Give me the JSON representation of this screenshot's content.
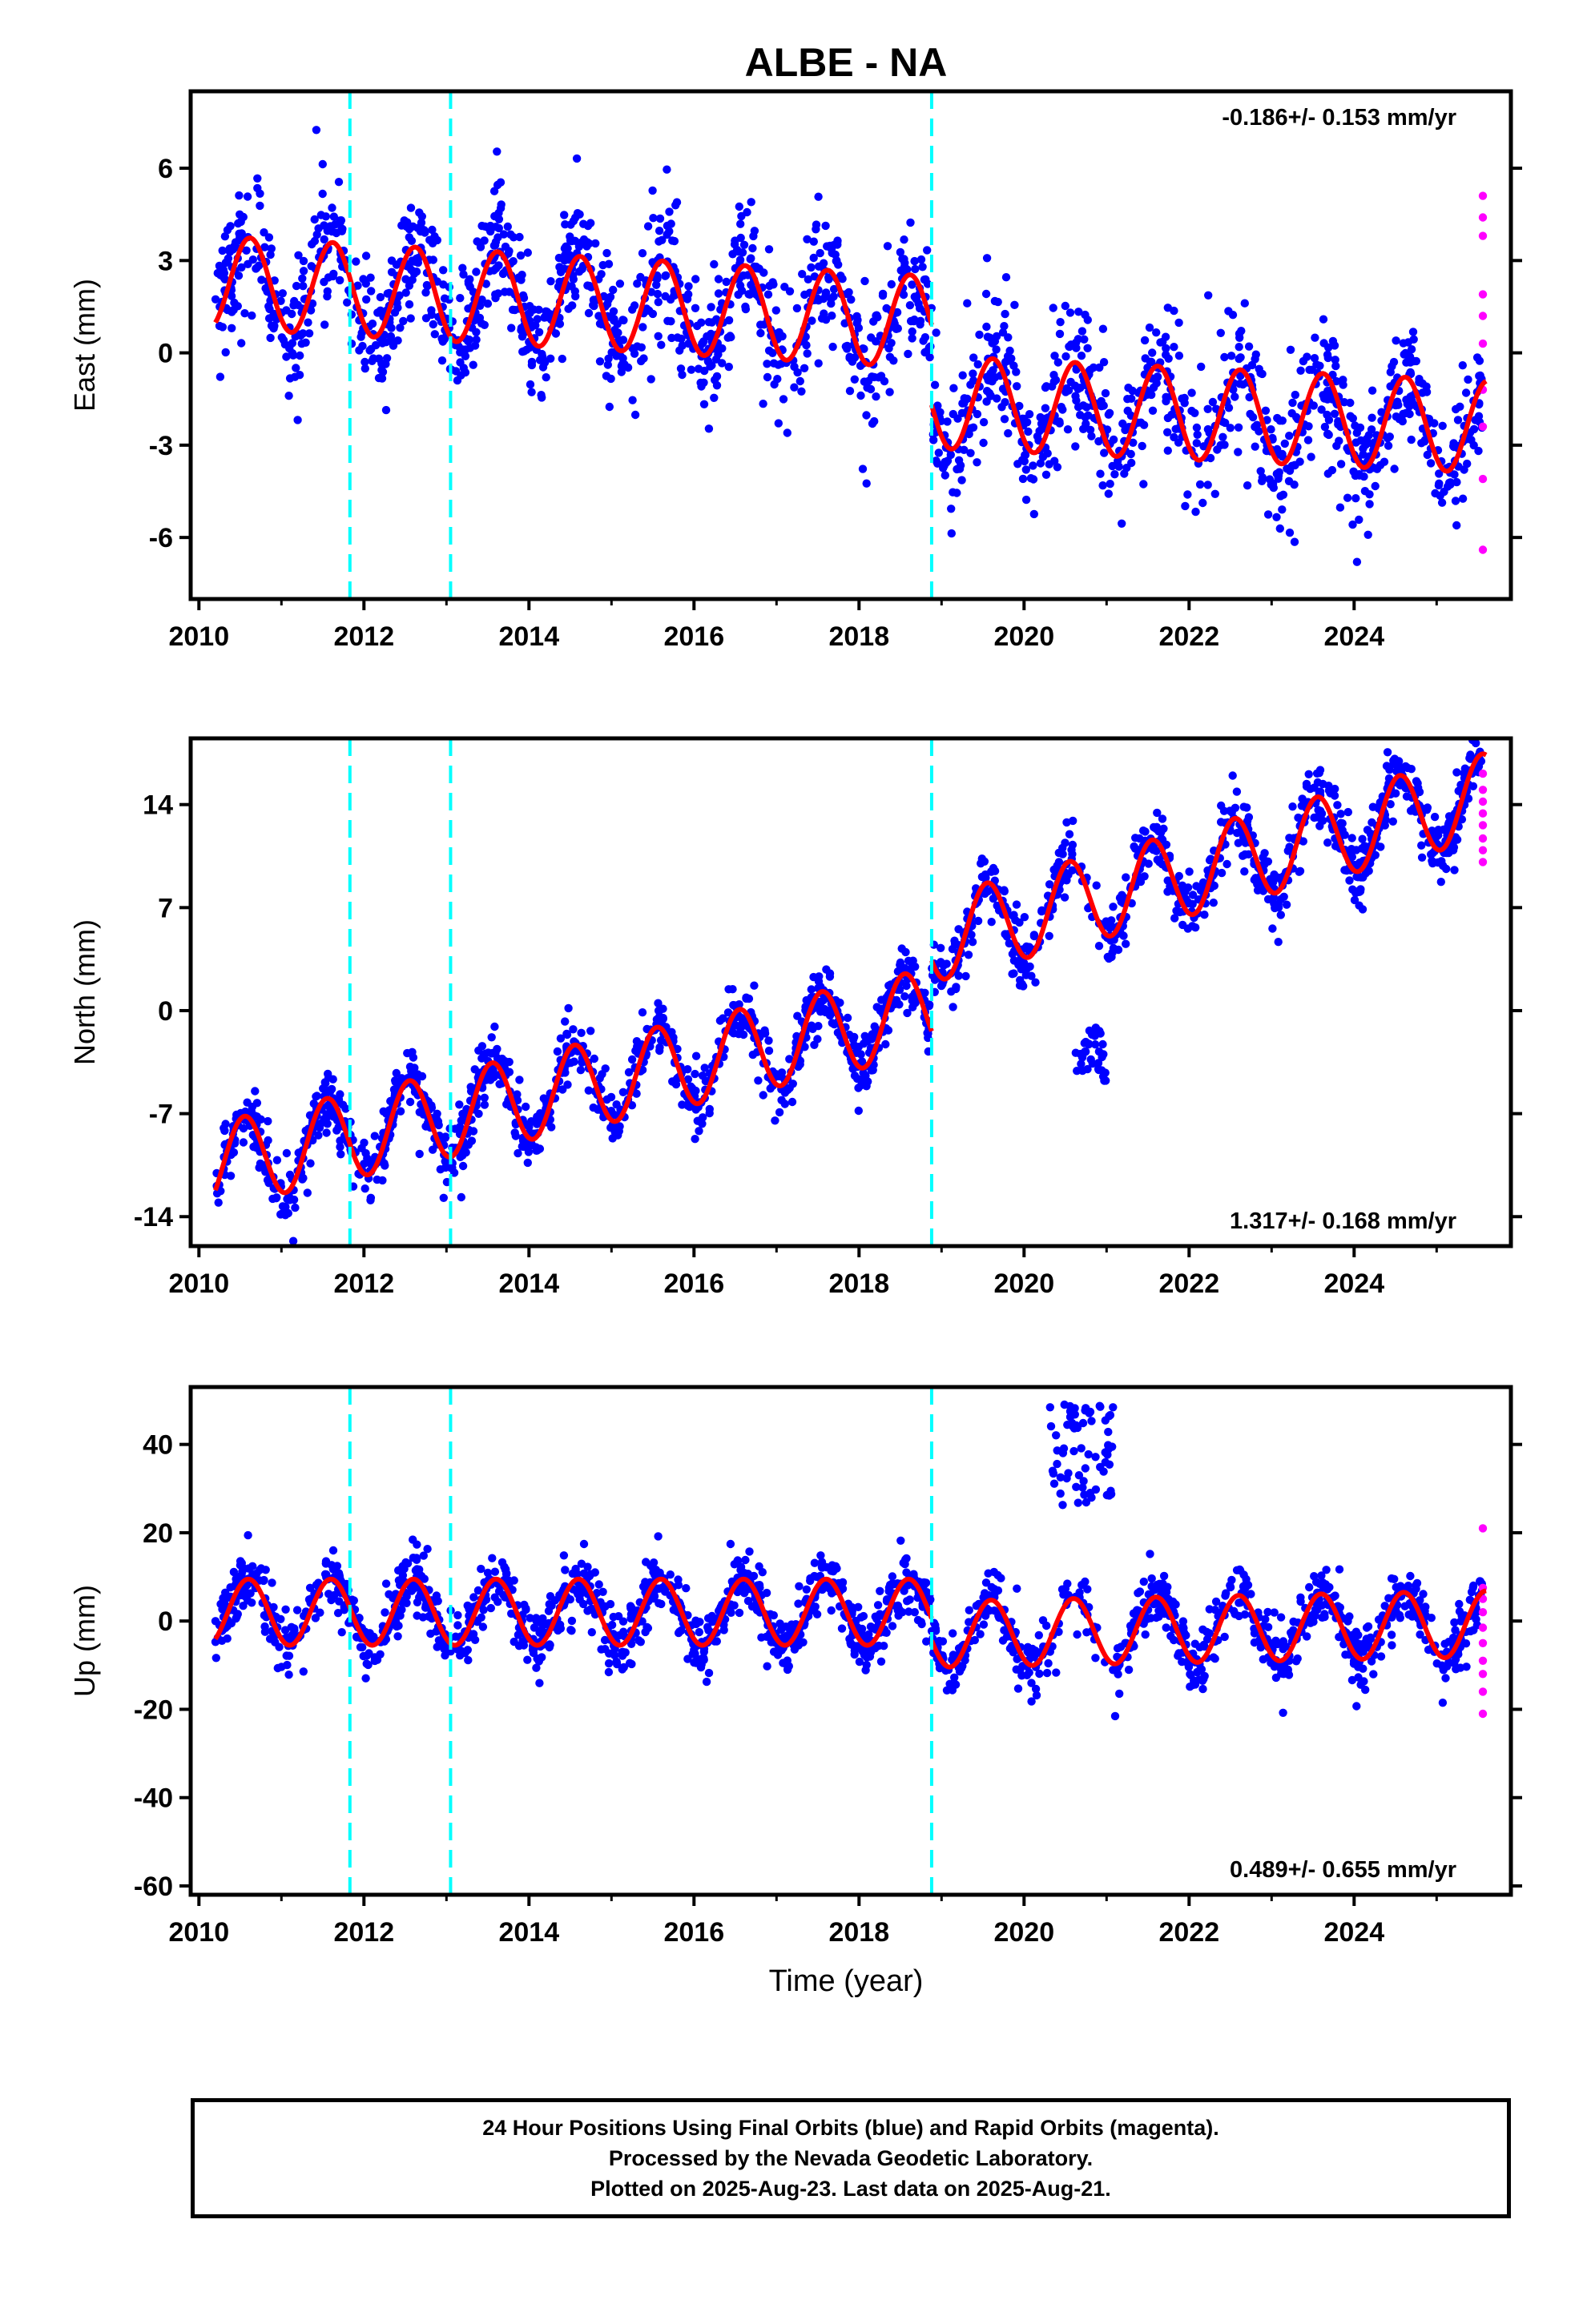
{
  "figure": {
    "title": "ALBE - NA",
    "xlabel": "Time (year)",
    "x_ticks": [
      2010,
      2012,
      2014,
      2016,
      2018,
      2020,
      2022,
      2024
    ],
    "xlim": [
      2009.9,
      2025.9
    ],
    "event_lines": [
      2011.83,
      2013.05,
      2018.88
    ],
    "colors": {
      "final_points": "#0000ff",
      "rapid_points": "#ff00ff",
      "model": "#ff0000",
      "event_line": "#00ffff",
      "frame": "#000000"
    }
  },
  "chart_data": [
    {
      "type": "scatter",
      "panel": "east",
      "ylabel": "East (mm)",
      "rate_label": "-0.186+/- 0.153 mm/yr",
      "rate_position": "top-right",
      "ylim": [
        -8,
        8.5
      ],
      "y_ticks": [
        6,
        3,
        0,
        -3,
        -6
      ],
      "y_tick_labels": [
        "6",
        "3",
        "0",
        "-3",
        "-6"
      ],
      "trend": {
        "offsets": [
          {
            "start": 2010.2,
            "end": 2018.88,
            "offset": 2.3,
            "rate": -0.15
          },
          {
            "start": 2018.88,
            "end": 2025.6,
            "offset": -1.6,
            "rate": -0.12
          }
        ],
        "seasonal_amplitude": 1.5,
        "seasonal_phase_year": 0.62,
        "scatter_sd": 1.35
      },
      "series": [
        {
          "name": "Final Orbits",
          "role": "final_points"
        },
        {
          "name": "Rapid Orbits",
          "role": "rapid_points",
          "x": 2025.56,
          "y": [
            5.1,
            4.4,
            3.8,
            1.9,
            1.2,
            0.3,
            -1.2,
            -2.4,
            -4.1,
            -6.4
          ]
        },
        {
          "name": "Model fit",
          "role": "model"
        }
      ]
    },
    {
      "type": "scatter",
      "panel": "north",
      "ylabel": "North (mm)",
      "rate_label": "1.317+/- 0.168 mm/yr",
      "rate_position": "bottom-right",
      "ylim": [
        -16,
        18.5
      ],
      "y_ticks": [
        14,
        7,
        0,
        -7,
        -14
      ],
      "y_tick_labels": [
        "14",
        "7",
        "0",
        "-7",
        "-14"
      ],
      "trend": {
        "offsets": [
          {
            "start": 2010.2,
            "end": 2018.88,
            "offset": -10.5,
            "rate": 1.21
          },
          {
            "start": 2018.88,
            "end": 2025.6,
            "offset": 4.8,
            "rate": 1.46
          }
        ],
        "seasonal_amplitude": 2.9,
        "seasonal_phase_year": 0.55,
        "scatter_sd": 1.35
      },
      "outlier_cluster": {
        "x_range": [
          2020.6,
          2021.0
        ],
        "y_range": [
          -5.0,
          -1.0
        ]
      },
      "series": [
        {
          "name": "Final Orbits",
          "role": "final_points"
        },
        {
          "name": "Rapid Orbits",
          "role": "rapid_points",
          "x": 2025.56,
          "y": [
            16.1,
            15.0,
            14.2,
            13.4,
            12.6,
            11.7,
            10.9,
            10.1
          ]
        },
        {
          "name": "Model fit",
          "role": "model"
        }
      ]
    },
    {
      "type": "scatter",
      "panel": "up",
      "ylabel": "Up (mm)",
      "rate_label": "0.489+/- 0.655 mm/yr",
      "rate_position": "bottom-right",
      "ylim": [
        -62,
        53
      ],
      "y_ticks": [
        40,
        20,
        0,
        -20,
        -40,
        -60
      ],
      "y_tick_labels": [
        "40",
        "20",
        "0",
        "-20",
        "-40",
        "-60"
      ],
      "trend": {
        "offsets": [
          {
            "start": 2010.2,
            "end": 2018.88,
            "offset": 2.0,
            "rate": 0.0
          },
          {
            "start": 2018.88,
            "end": 2025.6,
            "offset": -3.0,
            "rate": 0.35
          }
        ],
        "seasonal_amplitude": 7.5,
        "seasonal_phase_year": 0.6,
        "scatter_sd": 4.5
      },
      "outlier_cluster": {
        "x_range": [
          2020.3,
          2021.1
        ],
        "y_range": [
          26.0,
          50.0
        ]
      },
      "series": [
        {
          "name": "Final Orbits",
          "role": "final_points"
        },
        {
          "name": "Rapid Orbits",
          "role": "rapid_points",
          "x": 2025.56,
          "y": [
            21.0,
            7.5,
            5.0,
            2.0,
            -1.5,
            -5.0,
            -9.0,
            -12.0,
            -16.0,
            -21.0
          ]
        },
        {
          "name": "Model fit",
          "role": "model"
        }
      ]
    }
  ],
  "caption": {
    "line1": "24 Hour Positions Using Final Orbits (blue) and Rapid Orbits (magenta).",
    "line2": "Processed by the Nevada Geodetic Laboratory.",
    "line3": "Plotted on 2025-Aug-23. Last data on 2025-Aug-21."
  }
}
